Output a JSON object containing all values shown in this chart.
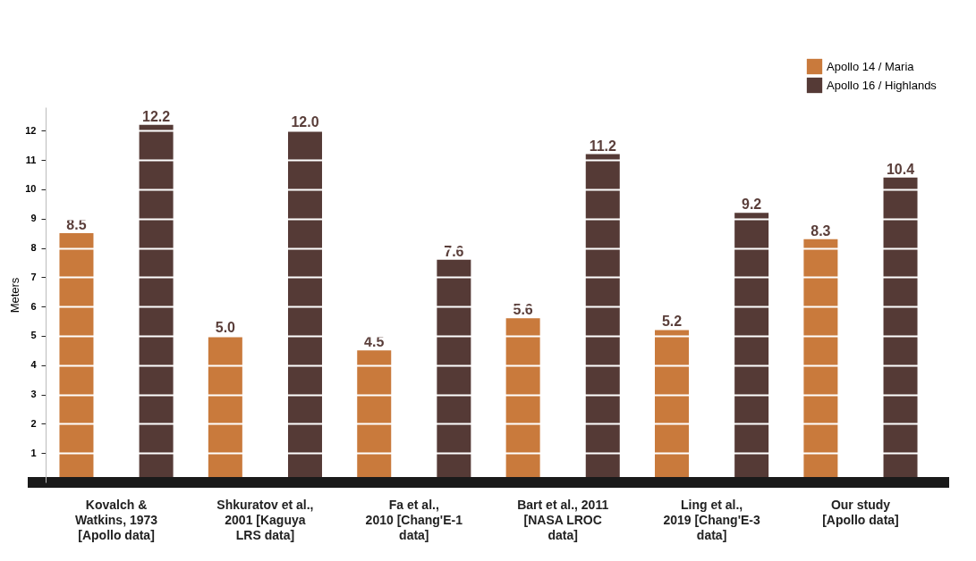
{
  "chart_data": {
    "type": "bar",
    "ylabel": "Meters",
    "categories": [
      "Kovalch &\nWatkins, 1973\n[Apollo data]",
      "Shkuratov et al.,\n2001 [Kaguya\nLRS data]",
      "Fa et al.,\n2010 [Chang'E-1\ndata]",
      "Bart et al., 2011\n[NASA LROC\ndata]",
      "Ling et al.,\n2019 [Chang'E-3\ndata]",
      "Our study\n[Apollo data]"
    ],
    "series": [
      {
        "name": "Apollo 14 / Maria",
        "color": "#c97a3c",
        "values": [
          8.5,
          5.0,
          4.5,
          5.6,
          5.2,
          8.3
        ],
        "value_labels": [
          "8.5",
          "5.0",
          "4.5",
          "5.6",
          "5.2",
          "8.3"
        ]
      },
      {
        "name": "Apollo 16 / Highlands",
        "color": "#553a36",
        "values": [
          12.2,
          12.0,
          7.6,
          11.2,
          9.2,
          10.4
        ],
        "value_labels": [
          "12.2",
          "12.0",
          "7.6",
          "11.2",
          "9.2",
          "10.4"
        ]
      }
    ],
    "ylim": [
      0,
      12.8
    ],
    "yticks": [
      1,
      2,
      3,
      4,
      5,
      6,
      7,
      8,
      9,
      10,
      11,
      12
    ],
    "grid": "y",
    "legend": "top right"
  }
}
